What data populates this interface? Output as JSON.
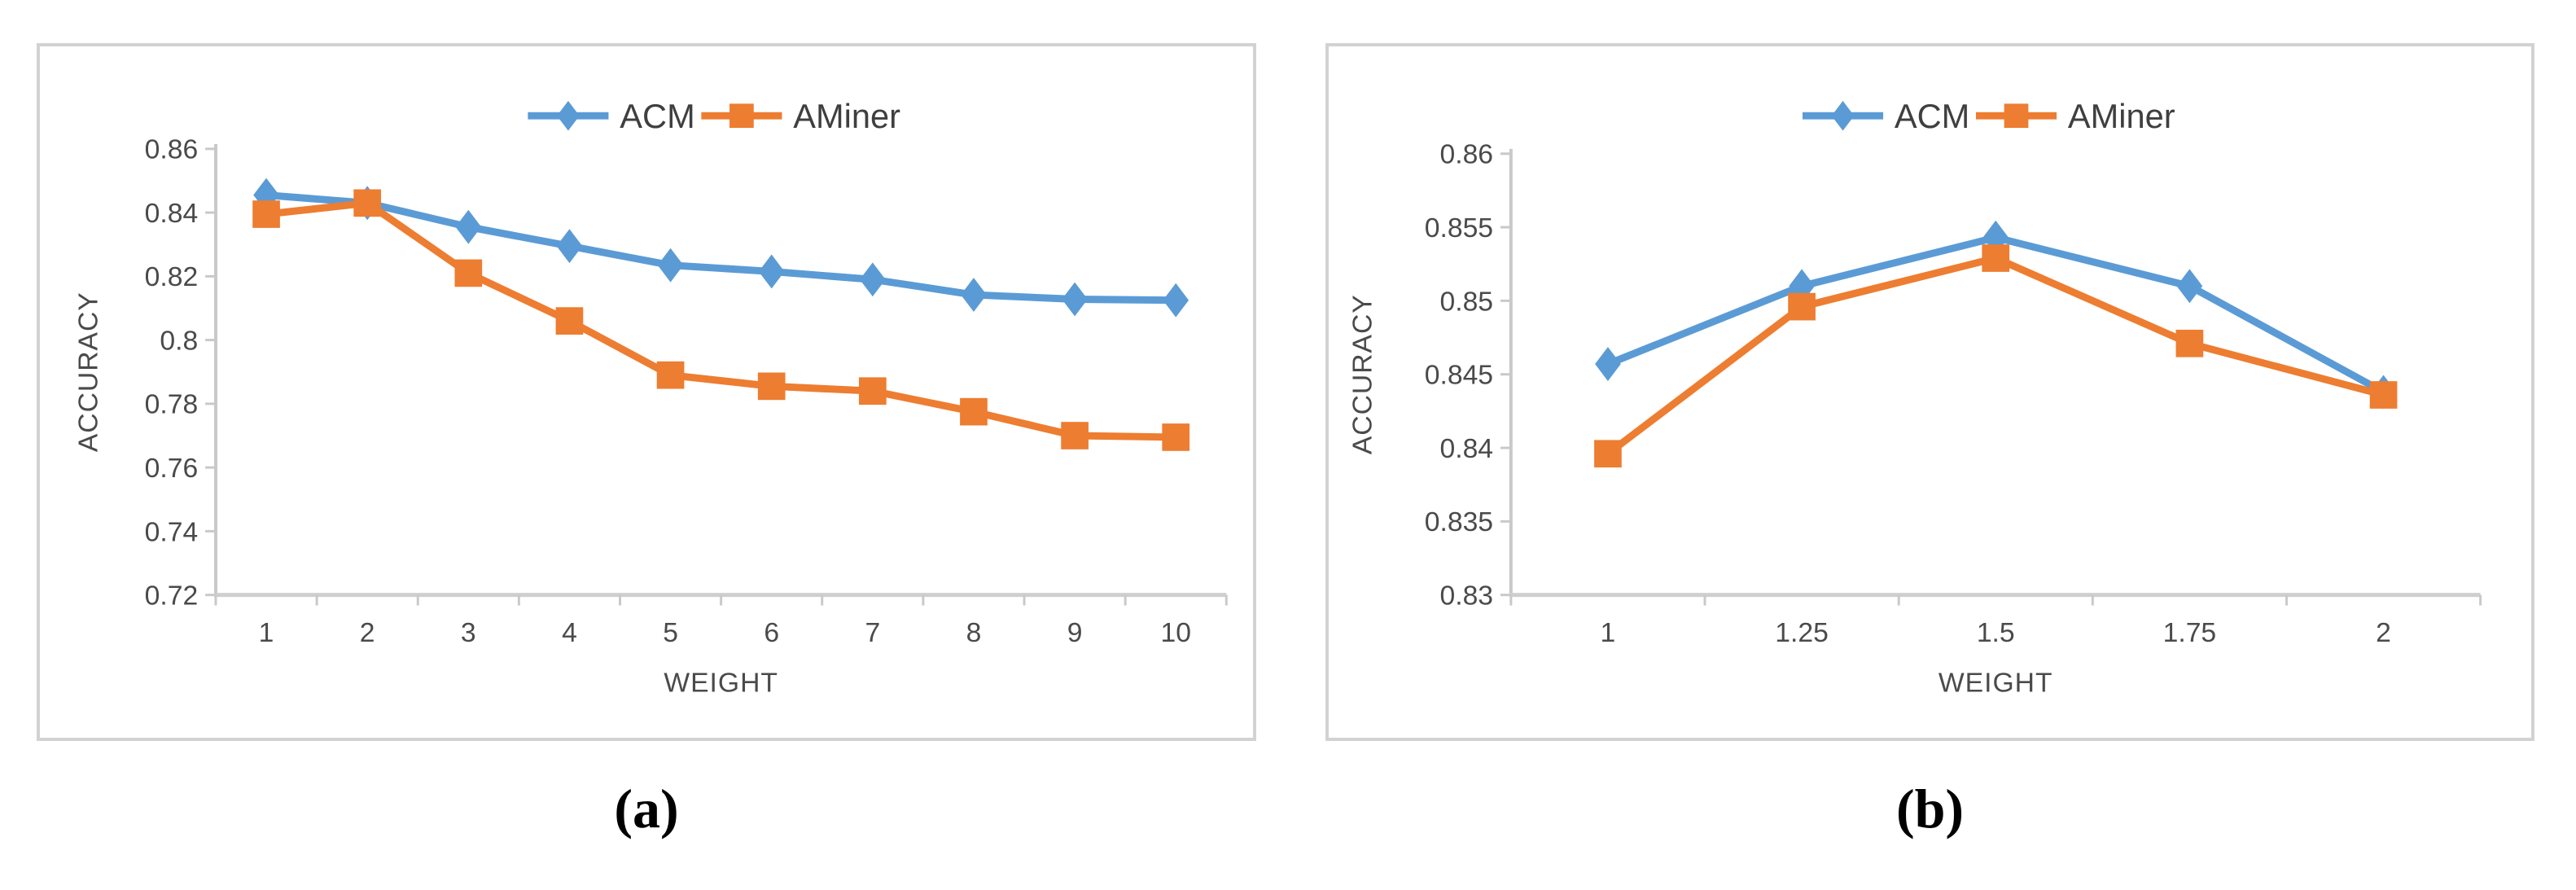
{
  "figure": {
    "panels": [
      {
        "id": "a",
        "caption": "(a)"
      },
      {
        "id": "b",
        "caption": "(b)"
      }
    ]
  },
  "colors": {
    "acm_blue": "#5B9BD5",
    "aminer_orange": "#ED7D31",
    "axis_line": "#c9c9c9",
    "tick_text": "#4a4a4a",
    "panel_border": "#d2d2d2",
    "caption_text": "#000000",
    "background": "#ffffff"
  },
  "chart_data": [
    {
      "type": "line",
      "title": "",
      "xlabel": "WEIGHT",
      "ylabel": "ACCURACY",
      "legend_position": "top-center",
      "grid": false,
      "x": [
        1,
        2,
        3,
        4,
        5,
        6,
        7,
        8,
        9,
        10
      ],
      "xticks": [
        "1",
        "2",
        "3",
        "4",
        "5",
        "6",
        "7",
        "8",
        "9",
        "10"
      ],
      "ylim": [
        0.72,
        0.86
      ],
      "ytick_step": 0.02,
      "yticks": [
        "0.72",
        "0.74",
        "0.76",
        "0.78",
        "0.8",
        "0.82",
        "0.84",
        "0.86"
      ],
      "series": [
        {
          "name": "ACM",
          "marker": "diamond",
          "color": "#5B9BD5",
          "values": [
            0.8455,
            0.843,
            0.8355,
            0.8295,
            0.8235,
            0.8215,
            0.819,
            0.8142,
            0.8128,
            0.8125
          ]
        },
        {
          "name": "AMiner",
          "marker": "square",
          "color": "#ED7D31",
          "values": [
            0.8395,
            0.843,
            0.821,
            0.806,
            0.789,
            0.7855,
            0.784,
            0.7775,
            0.77,
            0.7695
          ]
        }
      ],
      "caption": "(a)"
    },
    {
      "type": "line",
      "title": "",
      "xlabel": "WEIGHT",
      "ylabel": "ACCURACY",
      "legend_position": "top-center",
      "grid": false,
      "x": [
        1,
        1.25,
        1.5,
        1.75,
        2
      ],
      "xticks": [
        "1",
        "1.25",
        "1.5",
        "1.75",
        "2"
      ],
      "ylim": [
        0.83,
        0.86
      ],
      "ytick_step": 0.005,
      "yticks": [
        "0.83",
        "0.835",
        "0.84",
        "0.845",
        "0.85",
        "0.855",
        "0.86"
      ],
      "series": [
        {
          "name": "ACM",
          "marker": "diamond",
          "color": "#5B9BD5",
          "values": [
            0.8457,
            0.851,
            0.8543,
            0.851,
            0.8438
          ]
        },
        {
          "name": "AMiner",
          "marker": "square",
          "color": "#ED7D31",
          "values": [
            0.8396,
            0.8496,
            0.8529,
            0.8471,
            0.8436
          ]
        }
      ],
      "caption": "(b)"
    }
  ]
}
